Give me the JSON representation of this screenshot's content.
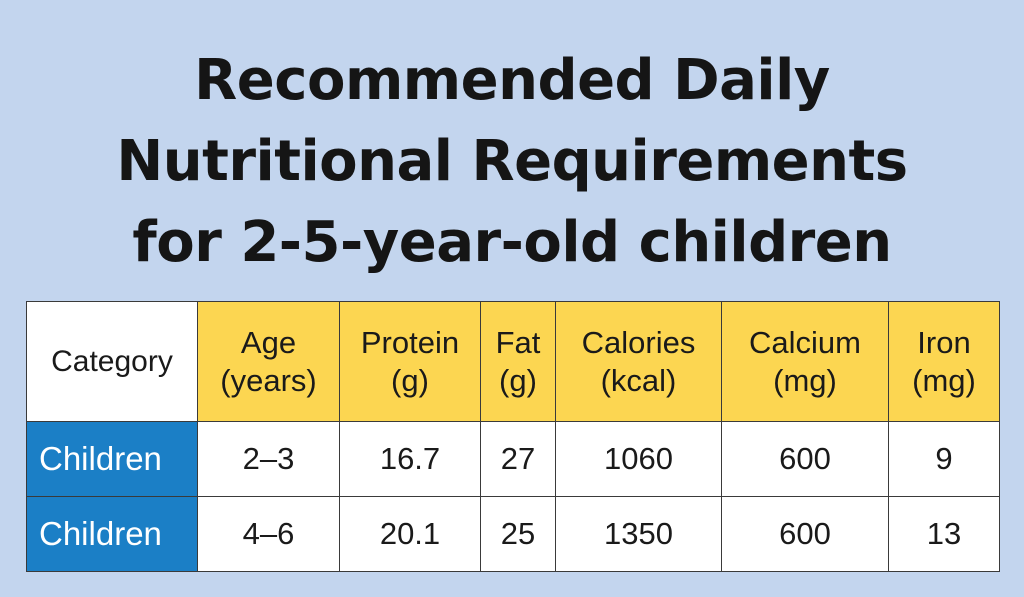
{
  "title": {
    "line1": "Recommended Daily",
    "line2": "Nutritional Requirements",
    "line3": "for 2-5-year-old children"
  },
  "table": {
    "header": {
      "category": "Category",
      "age": [
        "Age",
        "(years)"
      ],
      "protein": [
        "Protein",
        "(g)"
      ],
      "fat": [
        "Fat",
        "(g)"
      ],
      "calories": [
        "Calories",
        "(kcal)"
      ],
      "calcium": [
        "Calcium",
        "(mg)"
      ],
      "iron": [
        "Iron",
        "(mg)"
      ]
    },
    "rows": [
      {
        "category": "Children",
        "age": "2–3",
        "protein": "16.7",
        "fat": "27",
        "calories": "1060",
        "calcium": "600",
        "iron": "9"
      },
      {
        "category": "Children",
        "age": "4–6",
        "protein": "20.1",
        "fat": "25",
        "calories": "1350",
        "calcium": "600",
        "iron": "13"
      }
    ]
  },
  "colors": {
    "background": "#c3d5ee",
    "header_fill": "#fcd651",
    "category_fill": "#1b7fc6"
  }
}
